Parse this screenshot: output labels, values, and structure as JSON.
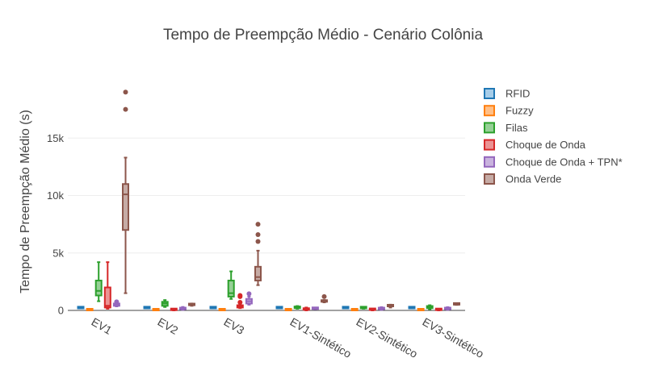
{
  "chart_data": {
    "type": "box",
    "title": "Tempo de Preempção Médio - Cenário Colônia",
    "xlabel": "",
    "ylabel": "Tempo de Preempção Médio (s)",
    "ylim": [
      0,
      20000
    ],
    "yticks": [
      0,
      5000,
      10000,
      15000
    ],
    "ytick_labels": [
      "0",
      "5k",
      "10k",
      "15k"
    ],
    "grid": true,
    "legend_position": "top-right",
    "categories": [
      "EV1",
      "EV2",
      "EV3",
      "EV1-Sintético",
      "EV2-Sintético",
      "EV3-Sintético"
    ],
    "series": [
      {
        "name": "RFID",
        "color": "#1f77b4",
        "fill": "#a6cde9",
        "boxes": [
          {
            "min": 180,
            "q1": 180,
            "median": 180,
            "q3": 180,
            "max": 180,
            "outliers": []
          },
          {
            "min": 180,
            "q1": 180,
            "median": 180,
            "q3": 180,
            "max": 180,
            "outliers": []
          },
          {
            "min": 180,
            "q1": 180,
            "median": 180,
            "q3": 180,
            "max": 180,
            "outliers": []
          },
          {
            "min": 180,
            "q1": 180,
            "median": 180,
            "q3": 180,
            "max": 180,
            "outliers": []
          },
          {
            "min": 180,
            "q1": 180,
            "median": 180,
            "q3": 180,
            "max": 180,
            "outliers": []
          },
          {
            "min": 180,
            "q1": 180,
            "median": 180,
            "q3": 180,
            "max": 180,
            "outliers": []
          }
        ]
      },
      {
        "name": "Fuzzy",
        "color": "#ff7f0e",
        "fill": "#ffbf87",
        "boxes": [
          {
            "min": 0,
            "q1": 0,
            "median": 40,
            "q3": 80,
            "max": 100,
            "outliers": []
          },
          {
            "min": 0,
            "q1": 0,
            "median": 40,
            "q3": 80,
            "max": 100,
            "outliers": []
          },
          {
            "min": 0,
            "q1": 0,
            "median": 20,
            "q3": 40,
            "max": 50,
            "outliers": []
          },
          {
            "min": 0,
            "q1": 0,
            "median": 40,
            "q3": 80,
            "max": 100,
            "outliers": []
          },
          {
            "min": 0,
            "q1": 0,
            "median": 20,
            "q3": 40,
            "max": 50,
            "outliers": []
          },
          {
            "min": 0,
            "q1": 0,
            "median": 20,
            "q3": 40,
            "max": 50,
            "outliers": []
          }
        ]
      },
      {
        "name": "Filas",
        "color": "#2ca02c",
        "fill": "#96d096",
        "boxes": [
          {
            "min": 800,
            "q1": 1300,
            "median": 1700,
            "q3": 2600,
            "max": 4200,
            "outliers": []
          },
          {
            "min": 300,
            "q1": 400,
            "median": 600,
            "q3": 750,
            "max": 900,
            "outliers": []
          },
          {
            "min": 1000,
            "q1": 1200,
            "median": 1500,
            "q3": 2600,
            "max": 3400,
            "outliers": []
          },
          {
            "min": 150,
            "q1": 200,
            "median": 280,
            "q3": 320,
            "max": 380,
            "outliers": []
          },
          {
            "min": 150,
            "q1": 180,
            "median": 230,
            "q3": 260,
            "max": 300,
            "outliers": []
          },
          {
            "min": 100,
            "q1": 200,
            "median": 300,
            "q3": 380,
            "max": 450,
            "outliers": []
          }
        ]
      },
      {
        "name": "Choque de Onda",
        "color": "#d62728",
        "fill": "#eb9394",
        "boxes": [
          {
            "min": 150,
            "q1": 250,
            "median": 400,
            "q3": 2000,
            "max": 4200,
            "outliers": []
          },
          {
            "min": 0,
            "q1": 20,
            "median": 50,
            "q3": 80,
            "max": 100,
            "outliers": []
          },
          {
            "min": 200,
            "q1": 250,
            "median": 350,
            "q3": 450,
            "max": 500,
            "outliers": [
              700,
              1200,
              1300
            ]
          },
          {
            "min": 0,
            "q1": 50,
            "median": 120,
            "q3": 180,
            "max": 250,
            "outliers": []
          },
          {
            "min": 0,
            "q1": 30,
            "median": 60,
            "q3": 90,
            "max": 120,
            "outliers": []
          },
          {
            "min": 0,
            "q1": 20,
            "median": 50,
            "q3": 70,
            "max": 90,
            "outliers": []
          }
        ]
      },
      {
        "name": "Choque de Onda + TPN*",
        "color": "#9467bd",
        "fill": "#c9b3de",
        "boxes": [
          {
            "min": 350,
            "q1": 400,
            "median": 500,
            "q3": 600,
            "max": 650,
            "outliers": [
              750
            ]
          },
          {
            "min": 50,
            "q1": 100,
            "median": 150,
            "q3": 220,
            "max": 300,
            "outliers": []
          },
          {
            "min": 500,
            "q1": 600,
            "median": 800,
            "q3": 1000,
            "max": 1200,
            "outliers": [
              1450
            ]
          },
          {
            "min": 100,
            "q1": 120,
            "median": 150,
            "q3": 180,
            "max": 200,
            "outliers": []
          },
          {
            "min": 50,
            "q1": 100,
            "median": 150,
            "q3": 200,
            "max": 280,
            "outliers": []
          },
          {
            "min": 50,
            "q1": 100,
            "median": 150,
            "q3": 220,
            "max": 280,
            "outliers": []
          }
        ]
      },
      {
        "name": "Onda Verde",
        "color": "#8c564b",
        "fill": "#c6aba5",
        "boxes": [
          {
            "min": 1500,
            "q1": 7000,
            "median": 10100,
            "q3": 11000,
            "max": 13300,
            "outliers": [
              17500,
              19000
            ]
          },
          {
            "min": 400,
            "q1": 450,
            "median": 500,
            "q3": 550,
            "max": 600,
            "outliers": []
          },
          {
            "min": 2200,
            "q1": 2600,
            "median": 2900,
            "q3": 3800,
            "max": 5200,
            "outliers": [
              6000,
              6600,
              7500
            ]
          },
          {
            "min": 700,
            "q1": 750,
            "median": 800,
            "q3": 850,
            "max": 900,
            "outliers": [
              1200
            ]
          },
          {
            "min": 250,
            "q1": 350,
            "median": 400,
            "q3": 450,
            "max": 500,
            "outliers": []
          },
          {
            "min": 480,
            "q1": 500,
            "median": 500,
            "q3": 520,
            "max": 540,
            "outliers": []
          }
        ]
      }
    ]
  }
}
